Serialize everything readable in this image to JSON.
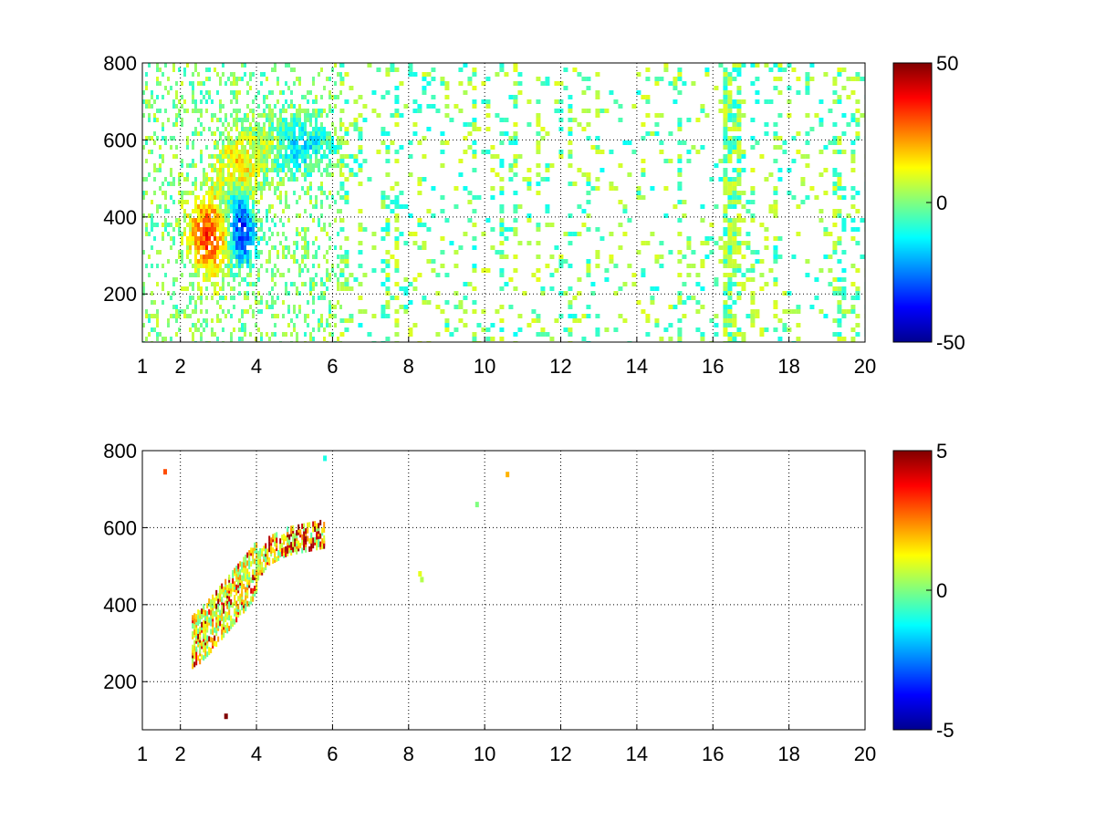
{
  "chart_data": [
    {
      "type": "heatmap",
      "title": "",
      "xlabel": "",
      "ylabel": "",
      "xlim": [
        1,
        20
      ],
      "ylim": [
        75,
        800
      ],
      "x_ticks": [
        1,
        2,
        4,
        6,
        8,
        10,
        12,
        14,
        16,
        18,
        20
      ],
      "y_ticks": [
        200,
        400,
        600,
        800
      ],
      "grid": true,
      "colormap": "jet",
      "colorbar": {
        "range": [
          -50,
          50
        ],
        "ticks": [
          50,
          0,
          -50
        ]
      },
      "features": [
        {
          "type": "blob",
          "x": 2.7,
          "y": 360,
          "sx": 0.35,
          "sy": 70,
          "value": 32
        },
        {
          "type": "blob",
          "x": 3.5,
          "y": 520,
          "sx": 0.35,
          "sy": 60,
          "value": 22
        },
        {
          "type": "blob",
          "x": 3.6,
          "y": 360,
          "sx": 0.22,
          "sy": 55,
          "value": -33
        },
        {
          "type": "blob",
          "x": 3.4,
          "y": 450,
          "sx": 0.25,
          "sy": 50,
          "value": -18
        },
        {
          "type": "blob",
          "x": 4.9,
          "y": 590,
          "sx": 0.7,
          "sy": 45,
          "value": -16
        },
        {
          "type": "blob",
          "x": 4.3,
          "y": 590,
          "sx": 0.3,
          "sy": 30,
          "value": 16
        }
      ],
      "noise": {
        "x_range": [
          1,
          20
        ],
        "dense_until": 6,
        "value_range": [
          -15,
          12
        ]
      }
    },
    {
      "type": "heatmap",
      "title": "",
      "xlabel": "",
      "ylabel": "",
      "xlim": [
        1,
        20
      ],
      "ylim": [
        75,
        800
      ],
      "x_ticks": [
        1,
        2,
        4,
        6,
        8,
        10,
        12,
        14,
        16,
        18,
        20
      ],
      "y_ticks": [
        200,
        400,
        600,
        800
      ],
      "grid": true,
      "colormap": "jet",
      "colorbar": {
        "range": [
          -5,
          5
        ],
        "ticks": [
          5,
          0,
          -5
        ]
      },
      "band": [
        {
          "x": 2.3,
          "y": 310
        },
        {
          "x": 2.8,
          "y": 360
        },
        {
          "x": 3.3,
          "y": 420
        },
        {
          "x": 3.8,
          "y": 480
        },
        {
          "x": 4.3,
          "y": 550
        },
        {
          "x": 4.8,
          "y": 575
        },
        {
          "x": 5.3,
          "y": 585
        },
        {
          "x": 5.8,
          "y": 595
        }
      ],
      "band_values": [
        -3.5,
        5
      ],
      "points": [
        {
          "x": 1.6,
          "y": 745,
          "value": 3
        },
        {
          "x": 8.3,
          "y": 480,
          "value": 1
        },
        {
          "x": 8.35,
          "y": 465,
          "value": 0.5
        },
        {
          "x": 9.8,
          "y": 660,
          "value": 0
        },
        {
          "x": 10.6,
          "y": 738,
          "value": 2
        },
        {
          "x": 3.2,
          "y": 110,
          "value": 5
        },
        {
          "x": 5.8,
          "y": 780,
          "value": -1
        }
      ]
    }
  ]
}
